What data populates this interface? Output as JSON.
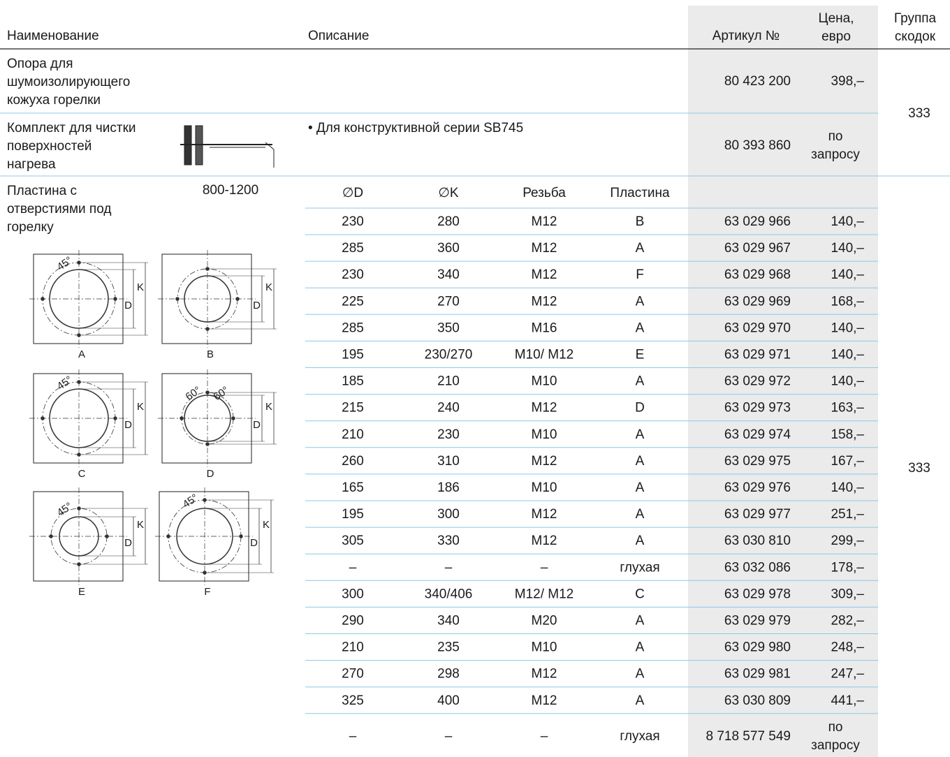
{
  "header": {
    "name": "Наименование",
    "description": "Описание",
    "article": "Артикул №",
    "price": [
      "Цена,",
      "евро"
    ],
    "group": [
      "Группа",
      "скодок"
    ]
  },
  "items": [
    {
      "name": [
        "Опора для",
        "шумоизолирующего",
        "кожуха горелки"
      ],
      "article": "80 423 200",
      "price": [
        "398,–"
      ]
    },
    {
      "name": [
        "Комплект для чистки",
        "поверхностей",
        "нагрева"
      ],
      "description": "• Для конструктивной серии SB745",
      "article": "80 393 860",
      "price": [
        "по",
        "запросу"
      ]
    },
    {
      "name": [
        "Пластина с",
        "отверстиями под",
        "горелку"
      ],
      "range": "800-1200",
      "columns": [
        "∅D",
        "∅K",
        "Резьба",
        "Пластина"
      ],
      "rows": [
        [
          "230",
          "280",
          "M12",
          "B",
          "63 029 966",
          [
            "140,–"
          ]
        ],
        [
          "285",
          "360",
          "M12",
          "A",
          "63 029 967",
          [
            "140,–"
          ]
        ],
        [
          "230",
          "340",
          "M12",
          "F",
          "63 029 968",
          [
            "140,–"
          ]
        ],
        [
          "225",
          "270",
          "M12",
          "A",
          "63 029 969",
          [
            "168,–"
          ]
        ],
        [
          "285",
          "350",
          "M16",
          "A",
          "63 029 970",
          [
            "140,–"
          ]
        ],
        [
          "195",
          "230/270",
          "M10/ M12",
          "E",
          "63 029 971",
          [
            "140,–"
          ]
        ],
        [
          "185",
          "210",
          "M10",
          "A",
          "63 029 972",
          [
            "140,–"
          ]
        ],
        [
          "215",
          "240",
          "M12",
          "D",
          "63 029 973",
          [
            "163,–"
          ]
        ],
        [
          "210",
          "230",
          "M10",
          "A",
          "63 029 974",
          [
            "158,–"
          ]
        ],
        [
          "260",
          "310",
          "M12",
          "A",
          "63 029 975",
          [
            "167,–"
          ]
        ],
        [
          "165",
          "186",
          "M10",
          "A",
          "63 029 976",
          [
            "140,–"
          ]
        ],
        [
          "195",
          "300",
          "M12",
          "A",
          "63 029 977",
          [
            "251,–"
          ]
        ],
        [
          "305",
          "330",
          "M12",
          "A",
          "63 030 810",
          [
            "299,–"
          ]
        ],
        [
          "–",
          "–",
          "–",
          "глухая",
          "63 032 086",
          [
            "178,–"
          ]
        ],
        [
          "300",
          "340/406",
          "M12/ M12",
          "C",
          "63 029 978",
          [
            "309,–"
          ]
        ],
        [
          "290",
          "340",
          "M20",
          "A",
          "63 029 979",
          [
            "282,–"
          ]
        ],
        [
          "210",
          "235",
          "M10",
          "A",
          "63 029 980",
          [
            "248,–"
          ]
        ],
        [
          "270",
          "298",
          "M12",
          "A",
          "63 029 981",
          [
            "247,–"
          ]
        ],
        [
          "325",
          "400",
          "M12",
          "A",
          "63 030 809",
          [
            "441,–"
          ]
        ],
        [
          "–",
          "–",
          "–",
          "глухая",
          "8 718 577 549",
          [
            "по",
            "запросу"
          ]
        ]
      ],
      "drawings": [
        {
          "label": "A",
          "k": "K",
          "d": "D",
          "angles": [
            "45°"
          ]
        },
        {
          "label": "B",
          "k": "K",
          "d": "D",
          "angles": []
        },
        {
          "label": "C",
          "k": "K",
          "d": "D",
          "angles": [
            "45°"
          ]
        },
        {
          "label": "D",
          "k": "K",
          "d": "D",
          "angles": [
            "60°",
            "60°"
          ]
        },
        {
          "label": "E",
          "k": "K",
          "d": "D",
          "angles": [
            "45°"
          ]
        },
        {
          "label": "F",
          "k": "K",
          "d": "D",
          "angles": [
            "45°"
          ]
        }
      ]
    }
  ],
  "groups": [
    "333",
    "333"
  ]
}
